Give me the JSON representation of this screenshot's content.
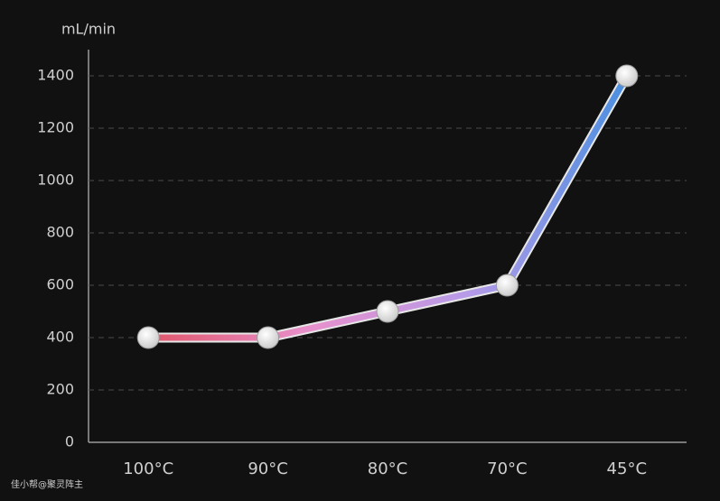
{
  "chart_data": {
    "type": "line",
    "y_label": "mL/min",
    "categories": [
      "100°C",
      "90°C",
      "80°C",
      "70°C",
      "45°C"
    ],
    "series": [
      {
        "values": [
          400,
          400,
          500,
          600,
          1400
        ]
      }
    ],
    "gradient": [
      "#e0566a",
      "#e890cc",
      "#b79be8",
      "#4a8fe0"
    ],
    "ylim": [
      0,
      1500
    ],
    "yticks": [
      0,
      200,
      400,
      600,
      800,
      1000,
      1200,
      1400
    ],
    "grid": true,
    "watermark": "佳小帮@聚灵阵主"
  }
}
